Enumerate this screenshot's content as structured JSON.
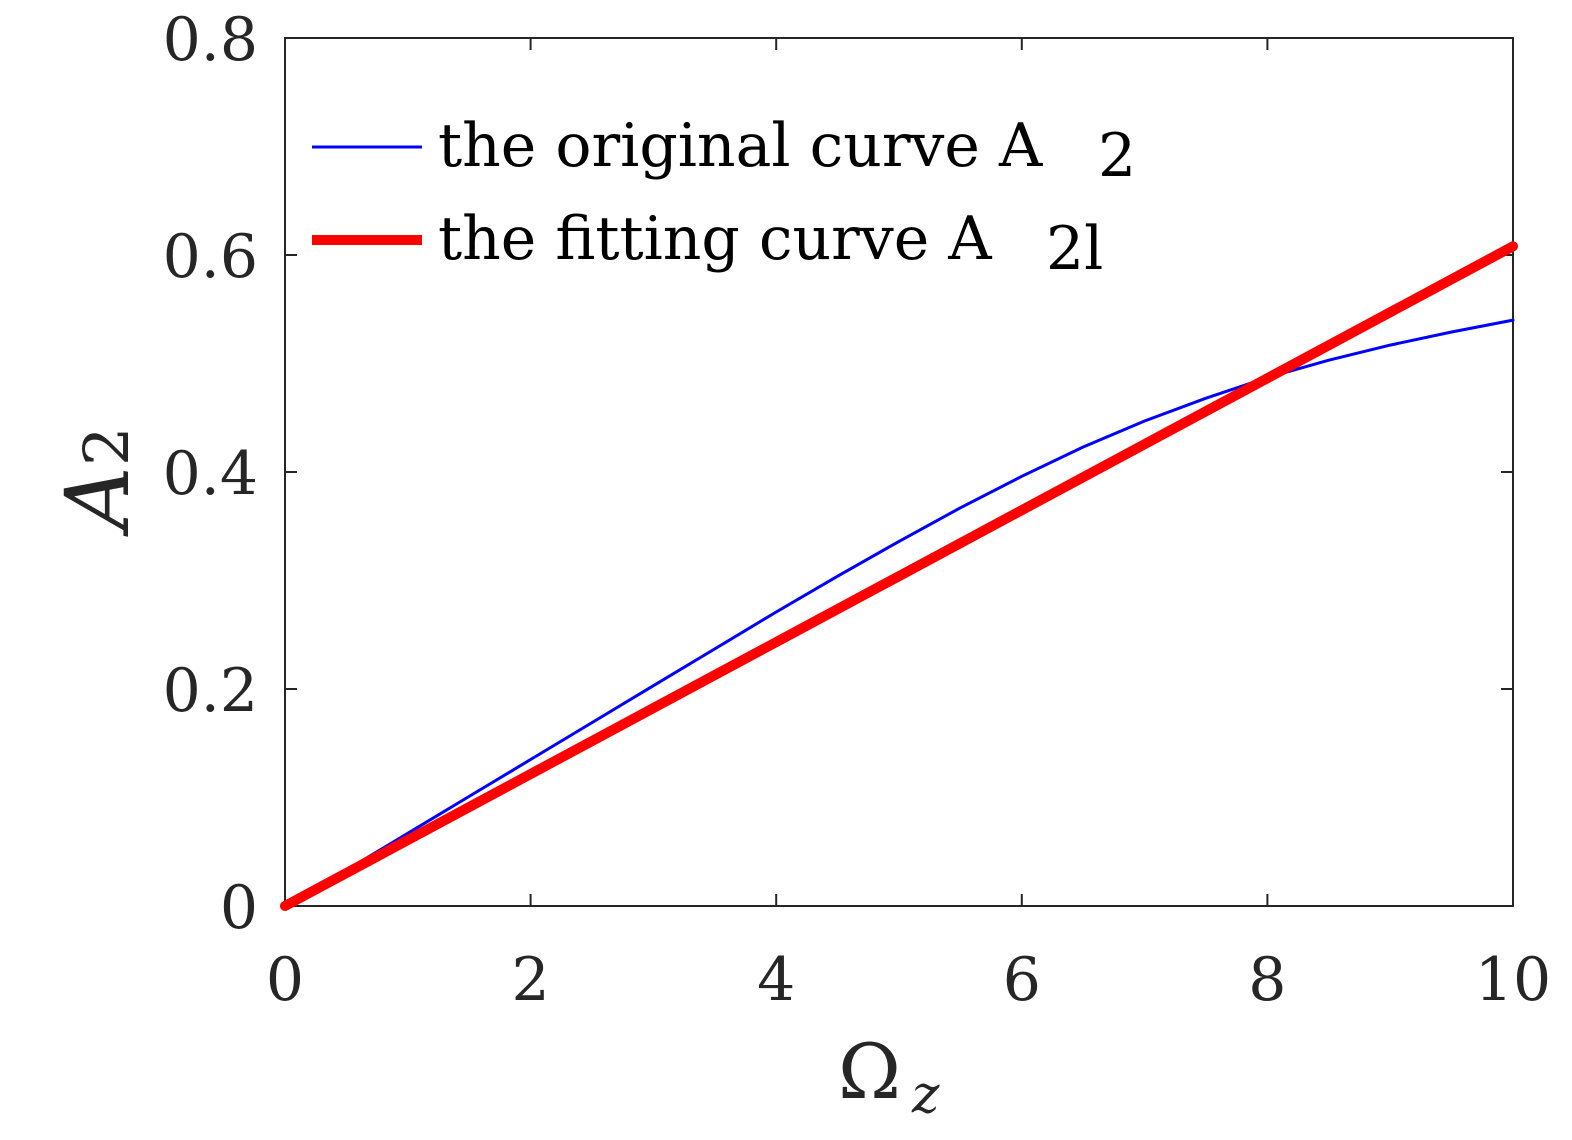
{
  "chart_data": {
    "type": "line",
    "xlabel": "Ω",
    "xlabel_sub": "z",
    "ylabel": "A",
    "ylabel_sub": "2",
    "xlim": [
      0,
      10
    ],
    "ylim": [
      0,
      0.8
    ],
    "xticks": [
      "0",
      "2",
      "4",
      "6",
      "8",
      "10"
    ],
    "yticks": [
      "0",
      "0.2",
      "0.4",
      "0.6",
      "0.8"
    ],
    "grid": false,
    "legend_position": "top-left",
    "series": [
      {
        "name": "the original curve A",
        "name_sub": "2",
        "color": "#0000ff",
        "style": "thin",
        "x": [
          0,
          0.5,
          1,
          1.5,
          2,
          2.5,
          3,
          3.5,
          4,
          4.5,
          5,
          5.5,
          6,
          6.5,
          7,
          7.5,
          8,
          8.5,
          9,
          9.5,
          10
        ],
        "y": [
          0,
          0.033,
          0.067,
          0.101,
          0.135,
          0.169,
          0.203,
          0.237,
          0.271,
          0.304,
          0.336,
          0.367,
          0.396,
          0.423,
          0.447,
          0.468,
          0.487,
          0.503,
          0.517,
          0.529,
          0.54
        ]
      },
      {
        "name": "the fitting curve A",
        "name_sub": "2l",
        "color": "#ff0000",
        "style": "thick",
        "x": [
          0,
          10
        ],
        "y": [
          0,
          0.608
        ]
      }
    ]
  }
}
